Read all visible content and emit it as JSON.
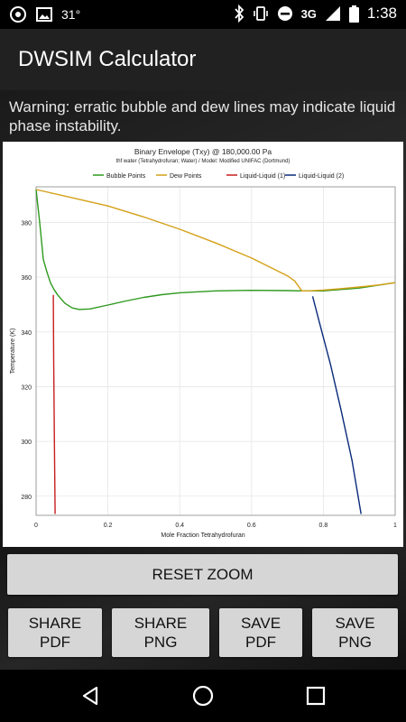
{
  "status_bar": {
    "left_icons": [
      "sync-icon",
      "image-icon"
    ],
    "notification_text": "31°",
    "network": "3G",
    "time": "1:38",
    "right_icons": [
      "bluetooth-icon",
      "vibrate-icon",
      "do-not-disturb-icon",
      "signal-icon",
      "battery-icon"
    ]
  },
  "app_bar": {
    "title": "DWSIM Calculator"
  },
  "warning": {
    "text": "Warning: erratic bubble and dew lines may indicate liquid phase instability."
  },
  "chart_data": {
    "type": "line",
    "title": "Binary Envelope (Txy) @ 180,000.00 Pa",
    "subtitle": "thf water (Tetrahydrofuran; Water) / Model: Modified UNIFAC (Dortmund)",
    "xlabel": "Mole Fraction Tetrahydrofuran",
    "ylabel": "Temperature (K)",
    "xlim": [
      0,
      1
    ],
    "ylim": [
      273,
      393
    ],
    "xticks": [
      "0",
      "0.2",
      "0.4",
      "0.6",
      "0.8",
      "1"
    ],
    "yticks": [
      "280",
      "300",
      "320",
      "340",
      "360",
      "380"
    ],
    "grid": true,
    "legend_position": "top",
    "series": [
      {
        "name": "Bubble Points",
        "color": "#2e9a1e",
        "x": [
          0.0,
          0.01,
          0.02,
          0.03,
          0.04,
          0.05,
          0.06,
          0.08,
          0.1,
          0.12,
          0.15,
          0.2,
          0.25,
          0.3,
          0.35,
          0.4,
          0.5,
          0.6,
          0.7,
          0.74,
          0.8,
          0.9,
          1.0
        ],
        "y": [
          392.0,
          380.0,
          366.5,
          362.0,
          358.0,
          355.5,
          353.5,
          350.5,
          348.8,
          348.2,
          348.4,
          349.8,
          351.3,
          352.6,
          353.6,
          354.3,
          355.0,
          355.2,
          355.1,
          355.0,
          355.0,
          356.0,
          358.0
        ]
      },
      {
        "name": "Dew Points",
        "color": "#d4a017",
        "x": [
          0.0,
          0.1,
          0.2,
          0.3,
          0.4,
          0.5,
          0.6,
          0.7,
          0.72,
          0.74,
          0.76,
          0.8,
          0.85,
          0.9,
          0.95,
          1.0
        ],
        "y": [
          392.0,
          389.0,
          386.0,
          382.0,
          377.5,
          372.5,
          367.0,
          360.5,
          358.6,
          355.0,
          355.0,
          355.3,
          355.8,
          356.4,
          357.1,
          358.0
        ]
      },
      {
        "name": "Liquid-Liquid (1)",
        "color": "#c81e1e",
        "x": [
          0.048,
          0.049,
          0.051,
          0.053
        ],
        "y": [
          353.5,
          330.0,
          300.0,
          273.5
        ]
      },
      {
        "name": "Liquid-Liquid (2)",
        "color": "#0a2a7a",
        "x": [
          0.77,
          0.79,
          0.82,
          0.85,
          0.88,
          0.905
        ],
        "y": [
          353.0,
          343.0,
          328.0,
          311.0,
          293.0,
          273.5
        ]
      }
    ]
  },
  "buttons": {
    "reset_zoom": "RESET ZOOM",
    "share_pdf": [
      "SHARE",
      "PDF"
    ],
    "share_png": [
      "SHARE",
      "PNG"
    ],
    "save_pdf": [
      "SAVE",
      "PDF"
    ],
    "save_png": [
      "SAVE",
      "PNG"
    ]
  },
  "nav_bar": {
    "icons": [
      "back-icon",
      "home-icon",
      "recents-icon"
    ]
  }
}
